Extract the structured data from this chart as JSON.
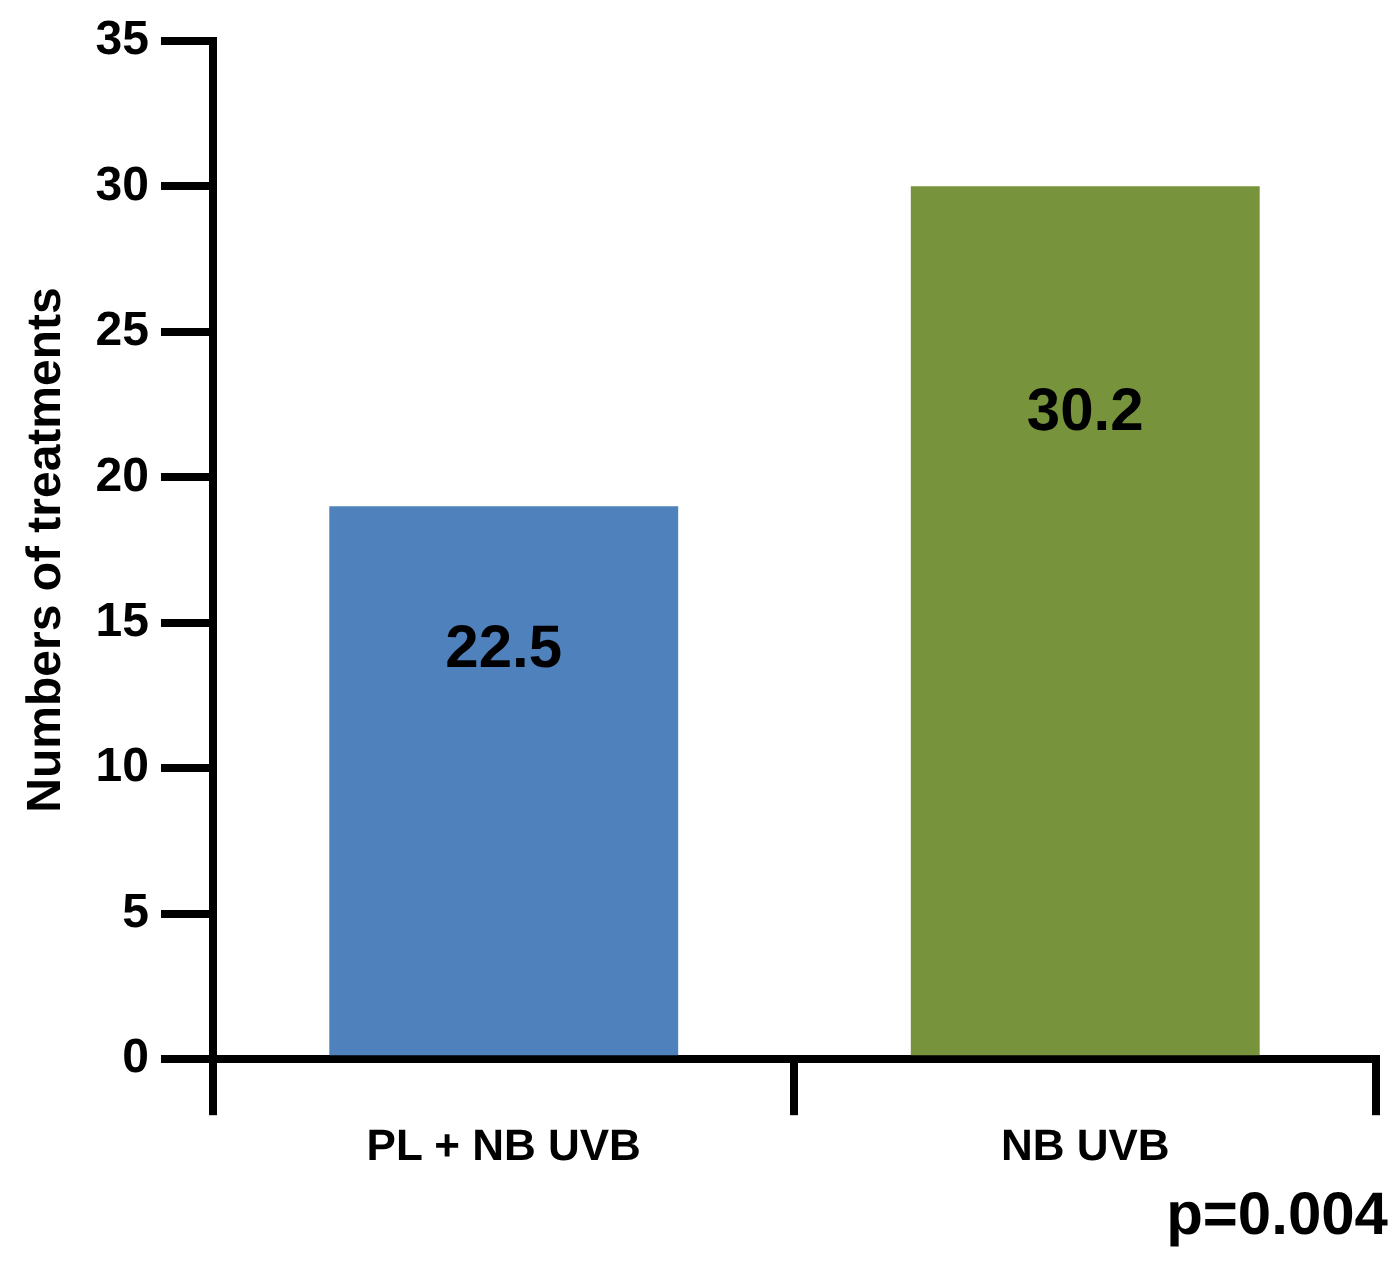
{
  "chart_data": {
    "type": "bar",
    "ylabel": "Numbers of treatments",
    "categories": [
      "PL + NB UVB",
      "NB UVB"
    ],
    "values": [
      19,
      30
    ],
    "colors": [
      "#4f81bd",
      "#77933c"
    ],
    "ylim": [
      0,
      35
    ],
    "yticks": [
      0,
      5,
      10,
      15,
      20,
      25,
      30,
      35
    ],
    "grid": false,
    "legend": false,
    "annotations": [
      "22.5",
      "30.2",
      "p=0.004"
    ]
  }
}
